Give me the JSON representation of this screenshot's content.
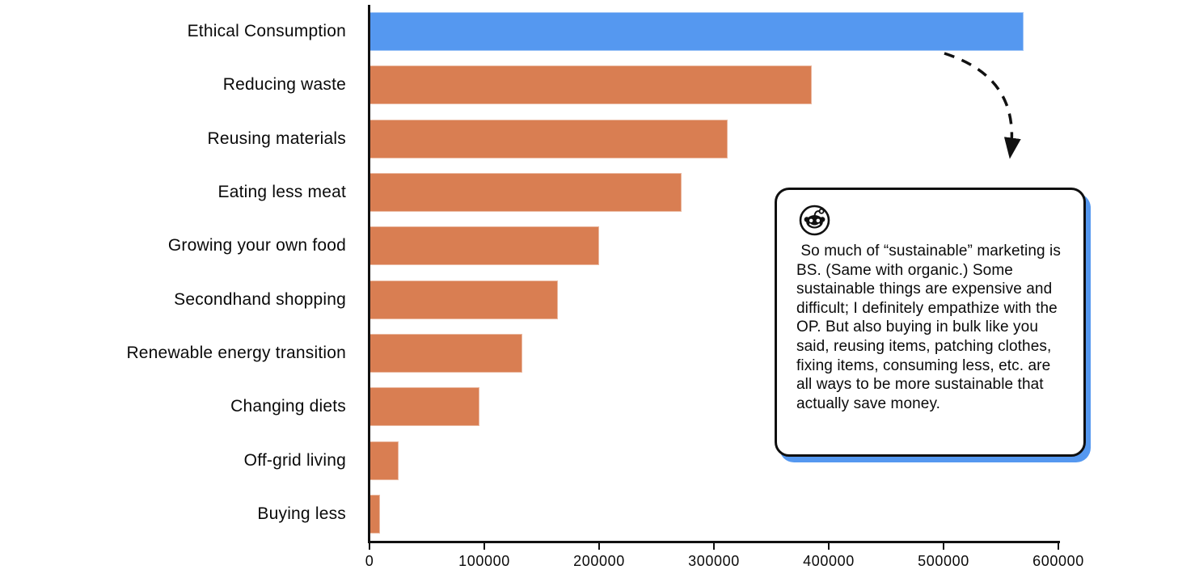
{
  "chart_data": {
    "type": "bar",
    "orientation": "horizontal",
    "title": "",
    "xlabel": "",
    "ylabel": "",
    "grid": false,
    "categories": [
      "Ethical Consumption",
      "Reducing waste",
      "Reusing materials",
      "Eating less meat",
      "Growing your own food",
      "Secondhand shopping",
      "Renewable energy transition",
      "Changing diets",
      "Off-grid living",
      "Buying less"
    ],
    "values": [
      570000,
      385000,
      312000,
      272000,
      200000,
      164000,
      133000,
      96000,
      25000,
      9000
    ],
    "xlim": [
      0,
      600000
    ],
    "x_ticks": [
      0,
      100000,
      200000,
      300000,
      400000,
      500000,
      600000
    ],
    "x_tick_labels": [
      "0",
      "100000",
      "200000",
      "300000",
      "400000",
      "500000",
      "600000"
    ],
    "highlight_index": 0,
    "highlight_color": "#5598f0",
    "bar_color": "#d97e52",
    "axis_color": "#111111"
  },
  "annotation": {
    "arrow_style": "dashed",
    "arrow_color": "#111111"
  },
  "callout": {
    "icon": "reddit-icon",
    "text": " So much of “sustainable” marketing is BS. (Same with organic.) Some sustainable things are expensive and difficult; I definitely empathize with the OP. But also buying in bulk like you said, reusing items, patching clothes, fixing items, consuming less, etc. are all ways to be more sustainable that actually save money.",
    "border_color": "#0f0f0f",
    "shadow_color": "#5598f0"
  }
}
